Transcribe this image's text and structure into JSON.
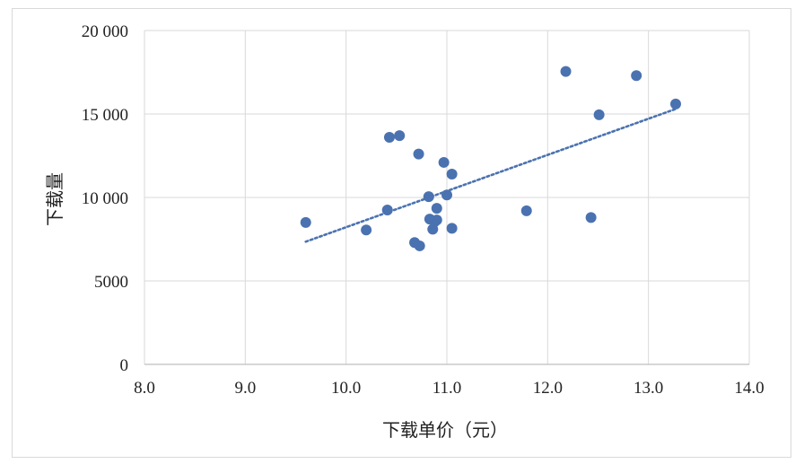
{
  "chart_data": {
    "type": "scatter",
    "title": "",
    "xlabel": "下载单价（元）",
    "ylabel": "下载量",
    "xlim": [
      8.0,
      14.0
    ],
    "ylim": [
      0,
      20000
    ],
    "x_ticks": [
      "8.0",
      "9.0",
      "10.0",
      "11.0",
      "12.0",
      "13.0",
      "14.0"
    ],
    "y_ticks": [
      "0",
      "5000",
      "10 000",
      "15 000",
      "20 000"
    ],
    "grid": true,
    "legend": "none",
    "series_color": "#4a72b0",
    "trendline": {
      "type": "linear",
      "style": "dotted",
      "x_range": [
        9.6,
        13.27
      ],
      "y_start": 7350,
      "y_end": 15300
    },
    "points": [
      {
        "x": 9.6,
        "y": 8500
      },
      {
        "x": 10.2,
        "y": 8050
      },
      {
        "x": 10.41,
        "y": 9250
      },
      {
        "x": 10.43,
        "y": 13600
      },
      {
        "x": 10.53,
        "y": 13700
      },
      {
        "x": 10.68,
        "y": 7300
      },
      {
        "x": 10.72,
        "y": 12600
      },
      {
        "x": 10.73,
        "y": 7100
      },
      {
        "x": 10.82,
        "y": 10050
      },
      {
        "x": 10.83,
        "y": 8700
      },
      {
        "x": 10.86,
        "y": 8100
      },
      {
        "x": 10.88,
        "y": 8550
      },
      {
        "x": 10.9,
        "y": 9350
      },
      {
        "x": 10.9,
        "y": 8650
      },
      {
        "x": 10.97,
        "y": 12100
      },
      {
        "x": 11.0,
        "y": 10150
      },
      {
        "x": 11.05,
        "y": 11400
      },
      {
        "x": 11.05,
        "y": 8150
      },
      {
        "x": 11.79,
        "y": 9200
      },
      {
        "x": 12.18,
        "y": 17550
      },
      {
        "x": 12.43,
        "y": 8800
      },
      {
        "x": 12.51,
        "y": 14950
      },
      {
        "x": 12.88,
        "y": 17300
      },
      {
        "x": 13.27,
        "y": 15600
      }
    ]
  }
}
